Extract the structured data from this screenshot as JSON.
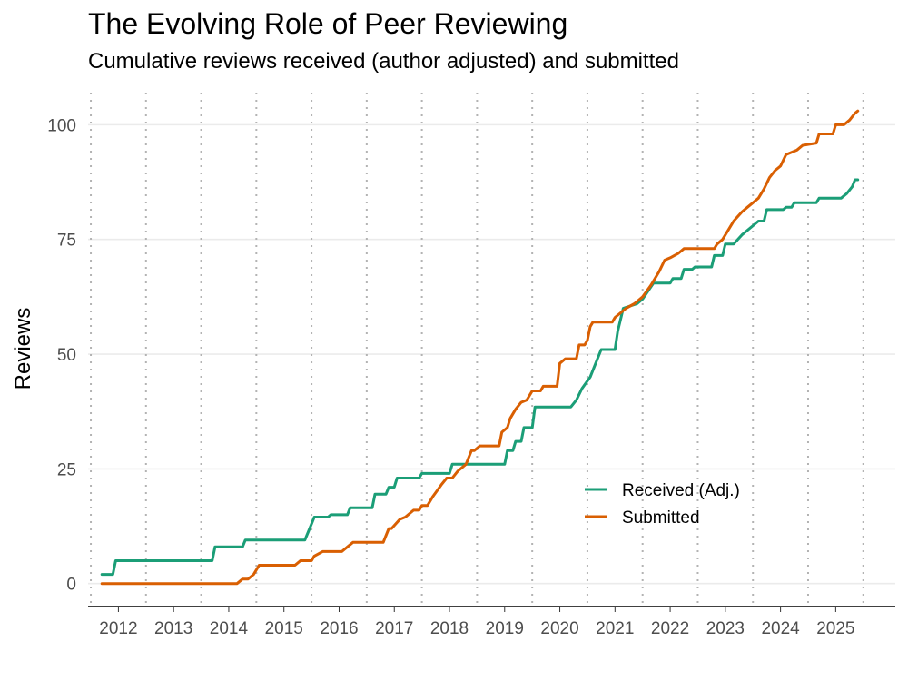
{
  "chart_data": {
    "type": "line",
    "title": "The Evolving Role of Peer Reviewing",
    "subtitle": "Cumulative reviews received (author adjusted) and submitted",
    "xlabel": "",
    "ylabel": "Reviews",
    "xlim": [
      2011.45,
      2026.08
    ],
    "ylim": [
      -5,
      107
    ],
    "x_ticks": [
      2012,
      2013,
      2014,
      2015,
      2016,
      2017,
      2018,
      2019,
      2020,
      2021,
      2022,
      2023,
      2024,
      2025
    ],
    "x_tick_labels": [
      "2012",
      "2013",
      "2014",
      "2015",
      "2016",
      "2017",
      "2018",
      "2019",
      "2020",
      "2021",
      "2022",
      "2023",
      "2024",
      "2025"
    ],
    "y_ticks": [
      0,
      25,
      50,
      75,
      100
    ],
    "y_tick_labels": [
      "0",
      "25",
      "50",
      "75",
      "100"
    ],
    "vertical_grid": "dotted at year boundaries",
    "horizontal_grid": true,
    "legend_position": "center-right inside plot",
    "series": [
      {
        "name": "Received (Adj.)",
        "color": "#1b9e77",
        "points": [
          [
            2011.7,
            2
          ],
          [
            2011.9,
            2
          ],
          [
            2011.95,
            5
          ],
          [
            2013.7,
            5
          ],
          [
            2013.75,
            8
          ],
          [
            2014.25,
            8
          ],
          [
            2014.3,
            9.5
          ],
          [
            2015.38,
            9.5
          ],
          [
            2015.5,
            13
          ],
          [
            2015.55,
            14.5
          ],
          [
            2015.8,
            14.5
          ],
          [
            2015.85,
            15
          ],
          [
            2016.15,
            15
          ],
          [
            2016.2,
            16.5
          ],
          [
            2016.6,
            16.5
          ],
          [
            2016.65,
            19.5
          ],
          [
            2016.85,
            19.5
          ],
          [
            2016.9,
            21
          ],
          [
            2017.0,
            21
          ],
          [
            2017.05,
            23
          ],
          [
            2017.45,
            23
          ],
          [
            2017.5,
            24
          ],
          [
            2018.0,
            24
          ],
          [
            2018.05,
            26
          ],
          [
            2019.0,
            26
          ],
          [
            2019.05,
            29
          ],
          [
            2019.15,
            29
          ],
          [
            2019.2,
            31
          ],
          [
            2019.3,
            31
          ],
          [
            2019.35,
            34
          ],
          [
            2019.5,
            34
          ],
          [
            2019.55,
            38.5
          ],
          [
            2020.2,
            38.5
          ],
          [
            2020.3,
            40
          ],
          [
            2020.4,
            42.5
          ],
          [
            2020.55,
            45
          ],
          [
            2020.65,
            48
          ],
          [
            2020.75,
            51
          ],
          [
            2021.0,
            51
          ],
          [
            2021.05,
            55
          ],
          [
            2021.15,
            60
          ],
          [
            2021.4,
            61
          ],
          [
            2021.5,
            62
          ],
          [
            2021.7,
            65.5
          ],
          [
            2022.0,
            65.5
          ],
          [
            2022.05,
            66.5
          ],
          [
            2022.2,
            66.5
          ],
          [
            2022.25,
            68.5
          ],
          [
            2022.4,
            68.5
          ],
          [
            2022.45,
            69
          ],
          [
            2022.75,
            69
          ],
          [
            2022.8,
            71.5
          ],
          [
            2022.95,
            71.5
          ],
          [
            2023.0,
            74
          ],
          [
            2023.15,
            74
          ],
          [
            2023.3,
            76
          ],
          [
            2023.5,
            78
          ],
          [
            2023.6,
            79
          ],
          [
            2023.7,
            79
          ],
          [
            2023.75,
            81.5
          ],
          [
            2024.05,
            81.5
          ],
          [
            2024.1,
            82
          ],
          [
            2024.2,
            82
          ],
          [
            2024.25,
            83
          ],
          [
            2024.65,
            83
          ],
          [
            2024.7,
            84
          ],
          [
            2025.1,
            84
          ],
          [
            2025.2,
            85
          ],
          [
            2025.3,
            86.5
          ],
          [
            2025.35,
            88
          ],
          [
            2025.4,
            88
          ]
        ]
      },
      {
        "name": "Submitted",
        "color": "#d95f02",
        "points": [
          [
            2011.7,
            0
          ],
          [
            2014.15,
            0
          ],
          [
            2014.25,
            1
          ],
          [
            2014.35,
            1
          ],
          [
            2014.45,
            2
          ],
          [
            2014.55,
            4
          ],
          [
            2015.2,
            4
          ],
          [
            2015.3,
            5
          ],
          [
            2015.5,
            5
          ],
          [
            2015.55,
            6
          ],
          [
            2015.7,
            7
          ],
          [
            2016.05,
            7
          ],
          [
            2016.15,
            8
          ],
          [
            2016.25,
            9
          ],
          [
            2016.8,
            9
          ],
          [
            2016.9,
            12
          ],
          [
            2016.95,
            12
          ],
          [
            2017.1,
            14
          ],
          [
            2017.2,
            14.5
          ],
          [
            2017.35,
            16
          ],
          [
            2017.45,
            16
          ],
          [
            2017.5,
            17
          ],
          [
            2017.6,
            17
          ],
          [
            2017.7,
            19
          ],
          [
            2017.85,
            21.5
          ],
          [
            2017.95,
            23
          ],
          [
            2018.05,
            23
          ],
          [
            2018.15,
            24.5
          ],
          [
            2018.3,
            26
          ],
          [
            2018.4,
            29
          ],
          [
            2018.45,
            29
          ],
          [
            2018.5,
            29.5
          ],
          [
            2018.55,
            30
          ],
          [
            2018.9,
            30
          ],
          [
            2018.95,
            33
          ],
          [
            2019.05,
            34
          ],
          [
            2019.1,
            36
          ],
          [
            2019.2,
            38
          ],
          [
            2019.3,
            39.5
          ],
          [
            2019.4,
            40
          ],
          [
            2019.5,
            42
          ],
          [
            2019.65,
            42
          ],
          [
            2019.7,
            43
          ],
          [
            2019.95,
            43
          ],
          [
            2020.0,
            48
          ],
          [
            2020.1,
            49
          ],
          [
            2020.3,
            49
          ],
          [
            2020.35,
            52
          ],
          [
            2020.45,
            52
          ],
          [
            2020.5,
            53
          ],
          [
            2020.55,
            56
          ],
          [
            2020.6,
            57
          ],
          [
            2020.95,
            57
          ],
          [
            2021.0,
            58
          ],
          [
            2021.1,
            59
          ],
          [
            2021.2,
            60
          ],
          [
            2021.35,
            61
          ],
          [
            2021.5,
            62.5
          ],
          [
            2021.65,
            65
          ],
          [
            2021.8,
            68
          ],
          [
            2021.9,
            70.5
          ],
          [
            2022.0,
            71
          ],
          [
            2022.15,
            72
          ],
          [
            2022.25,
            73
          ],
          [
            2022.8,
            73
          ],
          [
            2022.85,
            74
          ],
          [
            2022.95,
            75
          ],
          [
            2023.05,
            77
          ],
          [
            2023.15,
            79
          ],
          [
            2023.3,
            81
          ],
          [
            2023.4,
            82
          ],
          [
            2023.5,
            83
          ],
          [
            2023.6,
            84
          ],
          [
            2023.7,
            86
          ],
          [
            2023.8,
            88.5
          ],
          [
            2023.9,
            90
          ],
          [
            2024.0,
            91
          ],
          [
            2024.1,
            93.5
          ],
          [
            2024.3,
            94.5
          ],
          [
            2024.4,
            95.5
          ],
          [
            2024.65,
            96
          ],
          [
            2024.7,
            98
          ],
          [
            2024.95,
            98
          ],
          [
            2025.0,
            100
          ],
          [
            2025.15,
            100
          ],
          [
            2025.25,
            101
          ],
          [
            2025.35,
            102.5
          ],
          [
            2025.4,
            103
          ]
        ]
      }
    ]
  }
}
